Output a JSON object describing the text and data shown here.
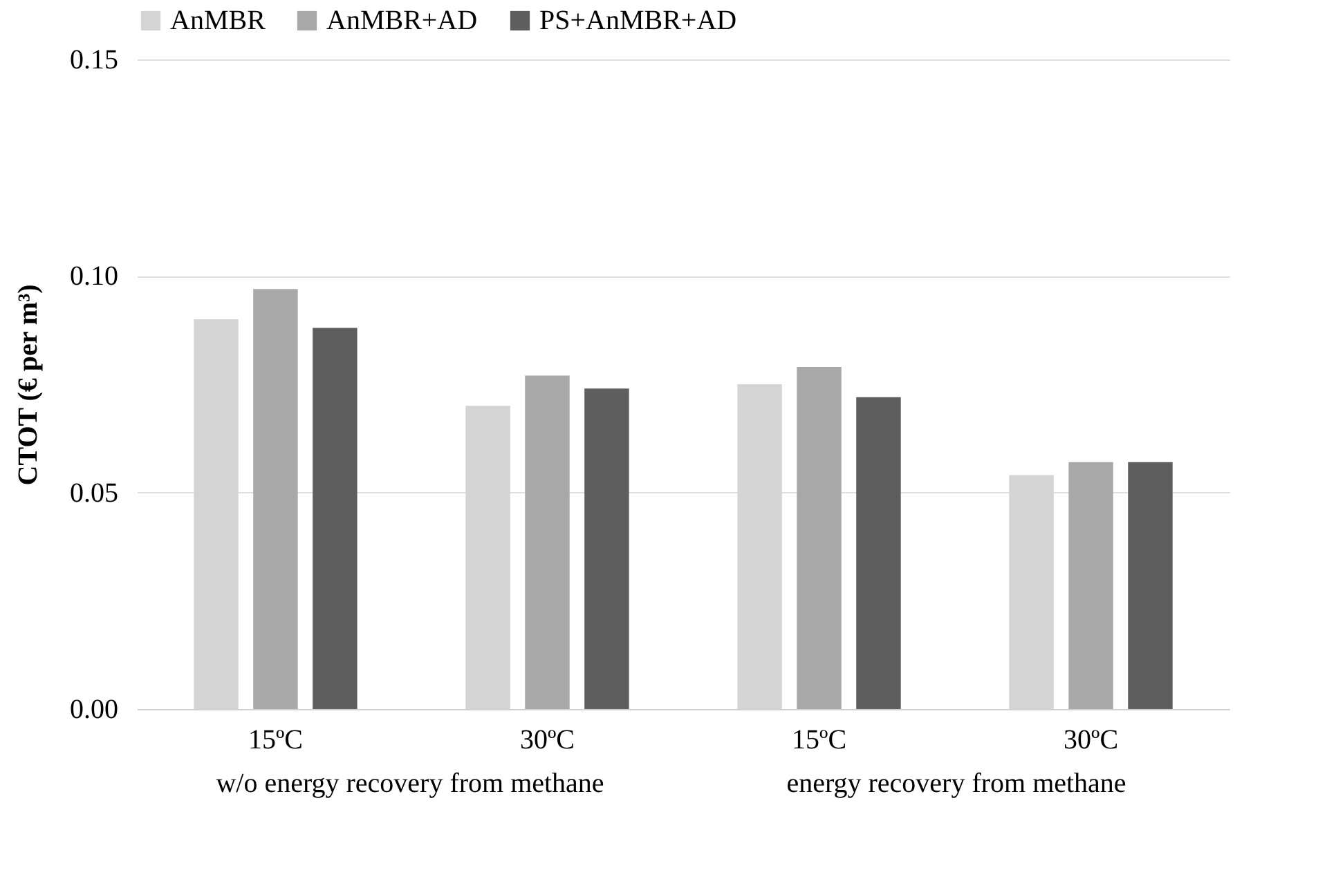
{
  "chart_data": {
    "type": "bar",
    "ylabel": "CTOT (€ per m³)",
    "categories": [
      "15ºC",
      "30ºC",
      "15ºC",
      "30ºC"
    ],
    "series": [
      {
        "name": "AnMBR",
        "color": "#d4d4d4",
        "values": [
          0.09,
          0.07,
          0.075,
          0.054
        ]
      },
      {
        "name": "AnMBR+AD",
        "color": "#a8a8a8",
        "values": [
          0.097,
          0.077,
          0.079,
          0.057
        ]
      },
      {
        "name": "PS+AnMBR+AD",
        "color": "#5e5e5e",
        "values": [
          0.088,
          0.074,
          0.072,
          0.057
        ]
      }
    ],
    "annotations": [
      "w/o energy recovery from methane",
      "energy recovery from methane"
    ],
    "ylim": [
      0,
      0.15
    ],
    "yticks": [
      {
        "value": 0,
        "label": "0.00"
      },
      {
        "value": 0.05,
        "label": "0.05"
      },
      {
        "value": 0.1,
        "label": "0.10"
      },
      {
        "value": 0.15,
        "label": "0.15"
      }
    ],
    "grid": "y",
    "legend": "top"
  }
}
